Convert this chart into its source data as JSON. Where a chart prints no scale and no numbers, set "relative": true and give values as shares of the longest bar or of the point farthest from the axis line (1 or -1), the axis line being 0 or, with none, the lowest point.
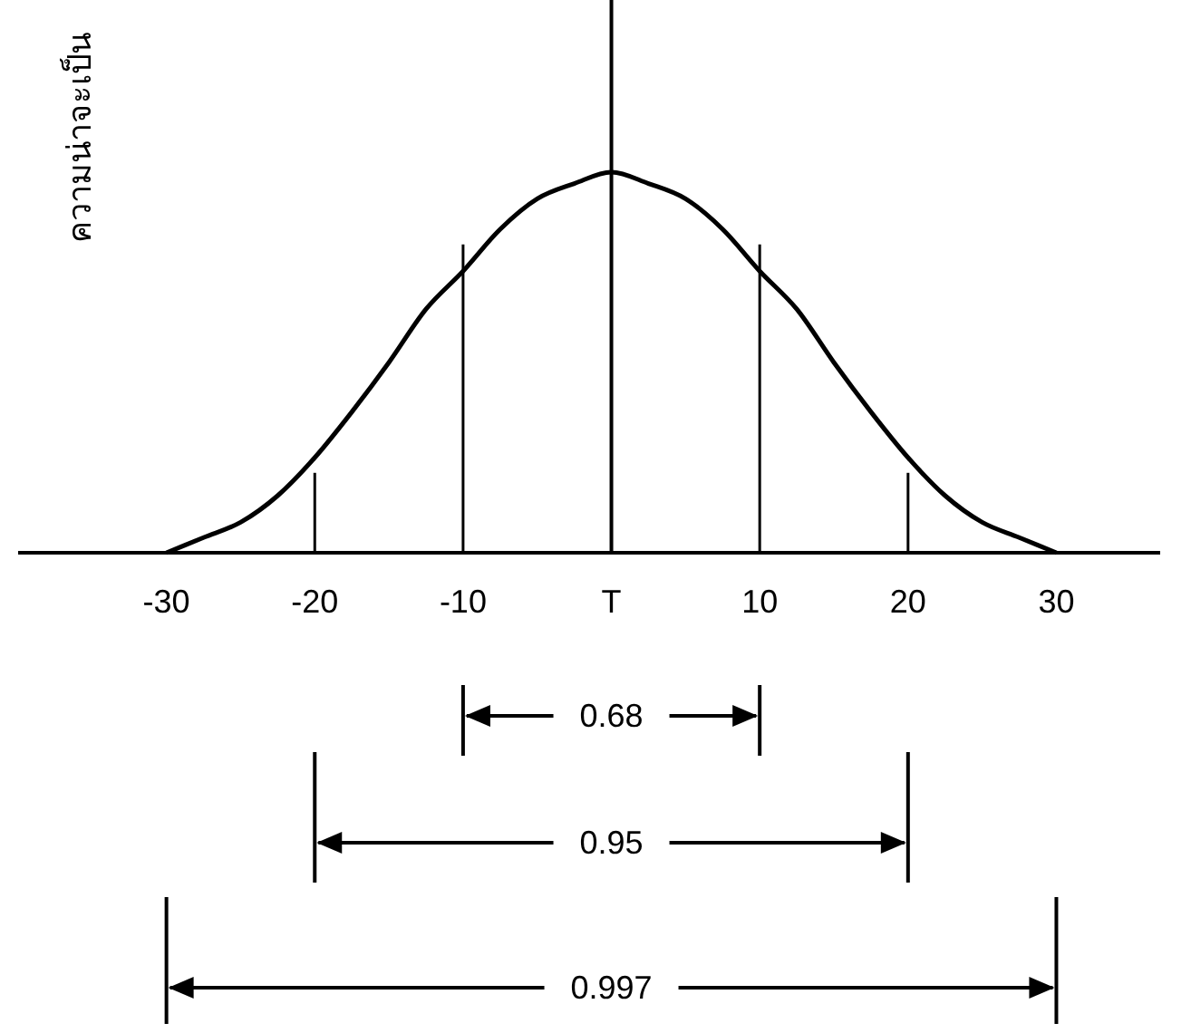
{
  "chart_data": {
    "type": "line",
    "ylabel": "ความน่าจะเป็น",
    "relative": true,
    "xlim": [
      -40,
      37
    ],
    "xticks": [
      -30,
      -20,
      -10,
      {
        "value": 0,
        "label": "T"
      },
      10,
      20,
      30
    ],
    "series": [
      {
        "color": "#000000",
        "x": [
          -30,
          -27.5,
          -25,
          -22.5,
          -20,
          -17.5,
          -15,
          -12.5,
          -10,
          -7.5,
          -5,
          -2.5,
          0,
          2.5,
          5,
          7.5,
          10,
          12.5,
          15,
          17.5,
          20,
          22.5,
          25,
          27.5,
          30
        ],
        "values": [
          0,
          0.04,
          0.08,
          0.15,
          0.25,
          0.37,
          0.5,
          0.64,
          0.74,
          0.85,
          0.93,
          0.97,
          1,
          0.97,
          0.93,
          0.85,
          0.74,
          0.64,
          0.5,
          0.37,
          0.25,
          0.15,
          0.08,
          0.04,
          0
        ]
      }
    ],
    "marker": "none",
    "annotations": [
      "0.68",
      "0.95",
      "0.997"
    ]
  }
}
